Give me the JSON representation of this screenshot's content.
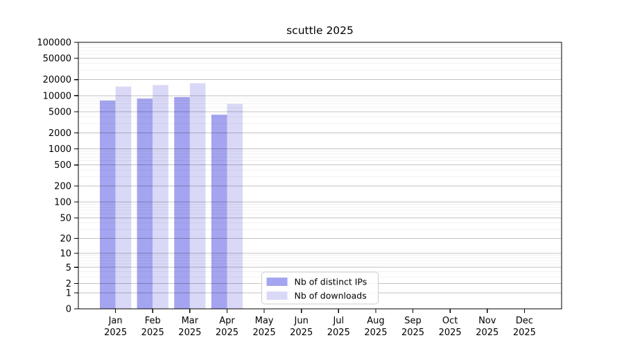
{
  "title": "scuttle 2025",
  "colors": {
    "background": "#ffffff",
    "frame": "#000000",
    "grid_major": "rgba(0,0,0,0.24)",
    "grid_minor": "rgba(0,0,0,0.055)",
    "legend_border": "#cccccc",
    "legend_bg": "rgba(255,255,255,0.85)",
    "series_distinct_ips": "#a4a4f0",
    "series_downloads": "#d9d9f7"
  },
  "chart_data": {
    "type": "bar",
    "title": "scuttle 2025",
    "xlabel": "",
    "ylabel": "",
    "yscale": "log1p",
    "ylim": [
      0,
      100000
    ],
    "grid": "both",
    "legend_position": "lower center",
    "ytick_values": [
      0,
      1,
      2,
      5,
      10,
      20,
      50,
      100,
      200,
      500,
      1000,
      2000,
      5000,
      10000,
      20000,
      50000,
      100000
    ],
    "ytick_labels": [
      "0",
      "1",
      "2",
      "5",
      "10",
      "20",
      "50",
      "100",
      "200",
      "500",
      "1000",
      "2000",
      "5000",
      "10000",
      "20000",
      "50000",
      "100000"
    ],
    "minor_tick_mantissas": [
      3,
      4,
      6,
      7,
      8,
      9
    ],
    "categories": [
      {
        "month": "Jan",
        "year": "2025"
      },
      {
        "month": "Feb",
        "year": "2025"
      },
      {
        "month": "Mar",
        "year": "2025"
      },
      {
        "month": "Apr",
        "year": "2025"
      },
      {
        "month": "May",
        "year": "2025"
      },
      {
        "month": "Jun",
        "year": "2025"
      },
      {
        "month": "Jul",
        "year": "2025"
      },
      {
        "month": "Aug",
        "year": "2025"
      },
      {
        "month": "Sep",
        "year": "2025"
      },
      {
        "month": "Oct",
        "year": "2025"
      },
      {
        "month": "Nov",
        "year": "2025"
      },
      {
        "month": "Dec",
        "year": "2025"
      }
    ],
    "series": [
      {
        "name": "Nb of distinct IPs",
        "color_key": "series_distinct_ips",
        "values": [
          8100,
          8800,
          9400,
          4400,
          0,
          0,
          0,
          0,
          0,
          0,
          0,
          0
        ]
      },
      {
        "name": "Nb of downloads",
        "color_key": "series_downloads",
        "values": [
          14800,
          15800,
          17100,
          7000,
          0,
          0,
          0,
          0,
          0,
          0,
          0,
          0
        ]
      }
    ]
  }
}
